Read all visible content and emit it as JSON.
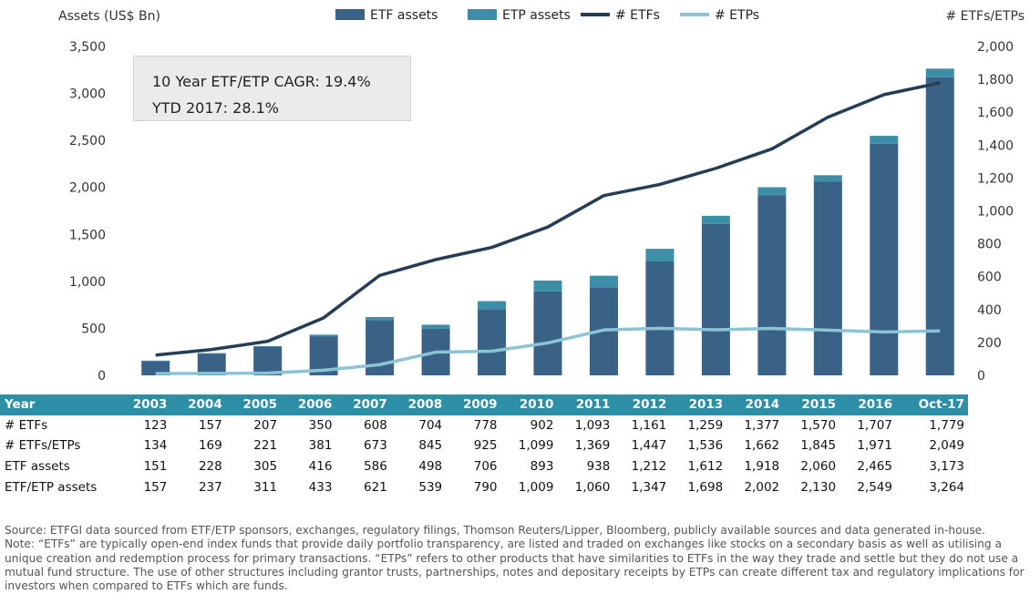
{
  "chart_data": {
    "type": "bar",
    "categories": [
      "2003",
      "2004",
      "2005",
      "2006",
      "2007",
      "2008",
      "2009",
      "2010",
      "2011",
      "2012",
      "2013",
      "2014",
      "2015",
      "2016",
      "Oct-17"
    ],
    "series": [
      {
        "name": "ETF assets",
        "kind": "bar",
        "axis": "left",
        "color": "#3a6186",
        "values": [
          151,
          228,
          305,
          416,
          586,
          498,
          706,
          893,
          938,
          1212,
          1612,
          1918,
          2060,
          2465,
          3173
        ]
      },
      {
        "name": "ETP assets",
        "kind": "bar-stack",
        "axis": "left",
        "color": "#3d8fa8",
        "values": [
          6,
          9,
          6,
          17,
          35,
          41,
          84,
          116,
          122,
          135,
          86,
          84,
          70,
          84,
          91
        ]
      },
      {
        "name": "# ETFs",
        "kind": "line",
        "axis": "right",
        "color": "#253e56",
        "values": [
          123,
          157,
          207,
          350,
          608,
          704,
          778,
          902,
          1093,
          1161,
          1259,
          1377,
          1570,
          1707,
          1779
        ]
      },
      {
        "name": "# ETPs",
        "kind": "line",
        "axis": "right",
        "color": "#8cc3d5",
        "values": [
          11,
          12,
          14,
          31,
          65,
          141,
          147,
          197,
          276,
          286,
          277,
          285,
          275,
          264,
          270
        ]
      }
    ],
    "ylabel": "Assets (US$ Bn)",
    "y2label": "# ETFs/ETPs",
    "ylim": [
      0,
      3500
    ],
    "y2lim": [
      0,
      2000
    ],
    "yticks": [
      "0",
      "500",
      "1,000",
      "1,500",
      "2,000",
      "2,500",
      "3,000",
      "3,500"
    ],
    "y2ticks": [
      "0",
      "200",
      "400",
      "600",
      "800",
      "1,000",
      "1,200",
      "1,400",
      "1,600",
      "1,800",
      "2,000"
    ],
    "legend_position": "top",
    "grid": false
  },
  "callout": {
    "line1": "10 Year ETF/ETP CAGR: 19.4%",
    "line2": "YTD 2017: 28.1%"
  },
  "table": {
    "header_label": "Year",
    "years": [
      "2003",
      "2004",
      "2005",
      "2006",
      "2007",
      "2008",
      "2009",
      "2010",
      "2011",
      "2012",
      "2013",
      "2014",
      "2015",
      "2016",
      "Oct-17"
    ],
    "rows": [
      {
        "label": "# ETFs",
        "values": [
          "123",
          "157",
          "207",
          "350",
          "608",
          "704",
          "778",
          "902",
          "1,093",
          "1,161",
          "1,259",
          "1,377",
          "1,570",
          "1,707",
          "1,779"
        ]
      },
      {
        "label": "# ETFs/ETPs",
        "values": [
          "134",
          "169",
          "221",
          "381",
          "673",
          "845",
          "925",
          "1,099",
          "1,369",
          "1,447",
          "1,536",
          "1,662",
          "1,845",
          "1,971",
          "2,049"
        ]
      },
      {
        "label": "ETF assets",
        "values": [
          "151",
          "228",
          "305",
          "416",
          "586",
          "498",
          "706",
          "893",
          "938",
          "1,212",
          "1,612",
          "1,918",
          "2,060",
          "2,465",
          "3,173"
        ]
      },
      {
        "label": "ETF/ETP assets",
        "values": [
          "157",
          "237",
          "311",
          "433",
          "621",
          "539",
          "790",
          "1,009",
          "1,060",
          "1,347",
          "1,698",
          "2,002",
          "2,130",
          "2,549",
          "3,264"
        ]
      }
    ]
  },
  "source": {
    "line1": "Source: ETFGI data sourced from ETF/ETP sponsors, exchanges, regulatory filings, Thomson Reuters/Lipper, Bloomberg, publicly available sources and data generated in-house.",
    "line2": "Note: “ETFs” are typically open-end index funds that provide daily portfolio transparency, are listed and traded on exchanges like stocks on a secondary basis as well as utilising a unique creation and redemption process for primary transactions. “ETPs” refers to other products that have similarities to ETFs in the way they trade and settle but they do not use a mutual fund structure. The use of other structures including grantor trusts, partnerships, notes and depositary receipts by ETPs can create different tax and regulatory implications for investors when compared to ETFs which are funds."
  }
}
